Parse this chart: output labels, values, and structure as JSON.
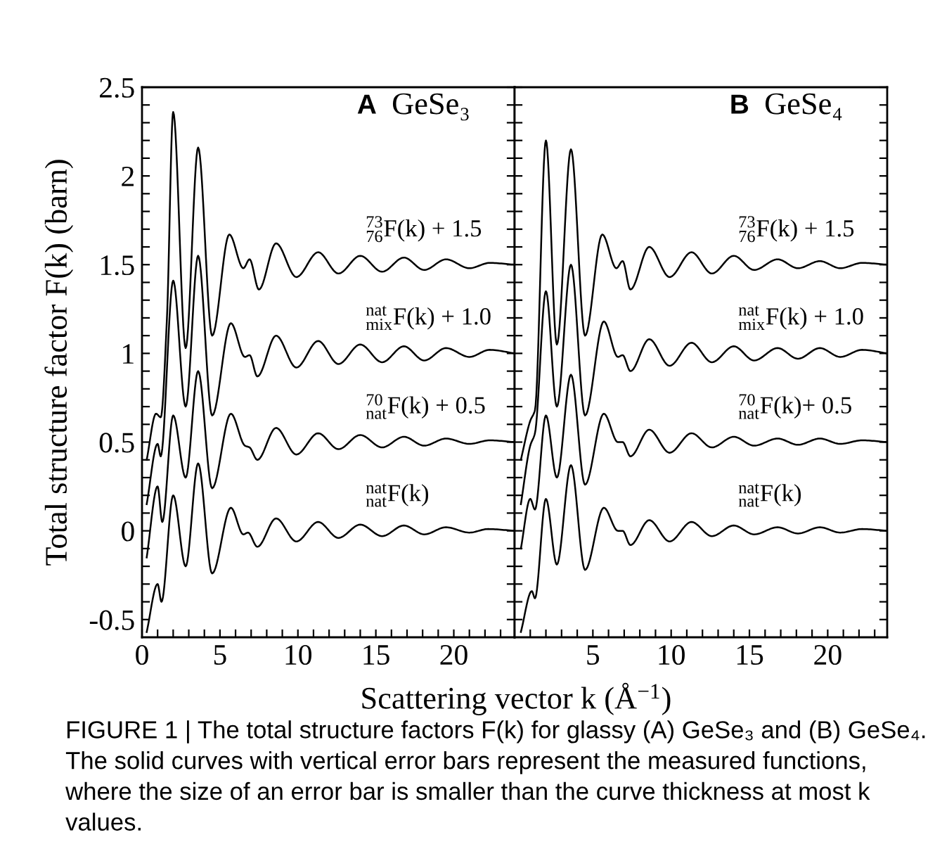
{
  "chart_data": [
    {
      "type": "line",
      "title": "GeSe₃",
      "annotations": [
        "A",
        "FIGURE 1 | The total structure factors F(k) for glassy (A) GeSe₃ and (B) GeSe₄. The solid curves with vertical error bars represent the measured functions, where the size of an error bar is smaller than the curve thickness at most k values."
      ],
      "xlabel": "Scattering vector k (Å$^{−1}$)",
      "ylabel": "Total structure factor F(k) (barn)",
      "xlim": [
        0,
        23.9
      ],
      "ylim": [
        -0.6,
        2.5
      ],
      "xticks": [
        0,
        {
          "value": 1,
          "label": null
        },
        {
          "value": 2,
          "label": null
        },
        {
          "value": 3,
          "label": null
        },
        {
          "value": 4,
          "label": null
        },
        5,
        {
          "value": 6,
          "label": null
        },
        {
          "value": 7,
          "label": null
        },
        {
          "value": 8,
          "label": null
        },
        {
          "value": 9,
          "label": null
        },
        10,
        {
          "value": 11,
          "label": null
        },
        {
          "value": 12,
          "label": null
        },
        {
          "value": 13,
          "label": null
        },
        {
          "value": 14,
          "label": null
        },
        15,
        {
          "value": 16,
          "label": null
        },
        {
          "value": 17,
          "label": null
        },
        {
          "value": 18,
          "label": null
        },
        {
          "value": 19,
          "label": null
        },
        20,
        {
          "value": 21,
          "label": null
        },
        {
          "value": 22,
          "label": null
        },
        {
          "value": 23,
          "label": null
        }
      ],
      "yticks": [
        {
          "value": -0.5,
          "label": "-0.5"
        },
        {
          "value": -0.4,
          "label": null
        },
        {
          "value": -0.3,
          "label": null
        },
        {
          "value": -0.2,
          "label": null
        },
        {
          "value": -0.1,
          "label": null
        },
        0,
        {
          "value": 0.1,
          "label": null
        },
        {
          "value": 0.2,
          "label": null
        },
        {
          "value": 0.3,
          "label": null
        },
        {
          "value": 0.4,
          "label": null
        },
        0.5,
        {
          "value": 0.6,
          "label": null
        },
        {
          "value": 0.7,
          "label": null
        },
        {
          "value": 0.8,
          "label": null
        },
        {
          "value": 0.9,
          "label": null
        },
        1,
        {
          "value": 1.1,
          "label": null
        },
        {
          "value": 1.2,
          "label": null
        },
        {
          "value": 1.3,
          "label": null
        },
        {
          "value": 1.4,
          "label": null
        },
        1.5,
        {
          "value": 1.6,
          "label": null
        },
        {
          "value": 1.7,
          "label": null
        },
        {
          "value": 1.8,
          "label": null
        },
        {
          "value": 1.9,
          "label": null
        },
        2,
        {
          "value": 2.1,
          "label": null
        },
        {
          "value": 2.2,
          "label": null
        },
        {
          "value": 2.3,
          "label": null
        },
        {
          "value": 2.4,
          "label": null
        },
        2.5
      ],
      "grid": false,
      "legend": "right",
      "marker": "none",
      "line_style": "solid",
      "series": [
        {
          "name": "$^{nat}$$_{nat}$F(k)",
          "color": "#000000",
          "x": [
            0.3,
            1.0,
            1.25,
            2.0,
            2.8,
            3.6,
            4.5,
            5.7,
            6.5,
            6.8,
            7.4,
            8.6,
            9.9,
            11.3,
            12.6,
            14.0,
            15.4,
            16.8,
            18.1,
            19.5,
            21.0,
            22.2,
            23.9
          ],
          "values": [
            -0.57,
            -0.3,
            -0.4,
            0.2,
            -0.2,
            0.38,
            -0.24,
            0.13,
            -0.02,
            -0.01,
            -0.09,
            0.07,
            -0.06,
            0.05,
            -0.04,
            0.035,
            -0.03,
            0.03,
            -0.02,
            0.02,
            -0.01,
            0.01,
            0.0
          ]
        },
        {
          "name": "$^{70}$$_{nat}$F(k) + 0.5",
          "color": "#000000",
          "x": [
            0.3,
            1.0,
            1.3,
            2.0,
            2.8,
            3.6,
            4.5,
            5.7,
            6.6,
            6.9,
            7.4,
            8.6,
            9.9,
            11.3,
            12.6,
            14.0,
            15.4,
            16.8,
            18.1,
            19.5,
            21.0,
            22.3,
            23.9
          ],
          "values": [
            -0.15,
            0.25,
            0.05,
            0.65,
            0.3,
            0.9,
            0.24,
            0.66,
            0.48,
            0.47,
            0.4,
            0.58,
            0.43,
            0.55,
            0.46,
            0.54,
            0.47,
            0.53,
            0.48,
            0.52,
            0.49,
            0.51,
            0.5
          ]
        },
        {
          "name": "$^{nat}$$_{mix}$F(k) + 1.0",
          "color": "#000000",
          "x": [
            0.3,
            1.0,
            1.2,
            2.0,
            2.8,
            3.6,
            4.5,
            5.7,
            6.6,
            6.9,
            7.4,
            8.6,
            9.9,
            11.3,
            12.6,
            14.0,
            15.4,
            16.8,
            18.1,
            19.5,
            21.0,
            22.3,
            23.9
          ],
          "values": [
            0.15,
            0.49,
            0.42,
            1.41,
            0.7,
            1.55,
            0.65,
            1.17,
            0.98,
            0.99,
            0.87,
            1.1,
            0.92,
            1.07,
            0.94,
            1.05,
            0.95,
            1.04,
            0.96,
            1.03,
            0.98,
            1.02,
            1.0
          ]
        },
        {
          "name": "$^{73}$$_{76}$F(k) + 1.5",
          "color": "#000000",
          "x": [
            0.3,
            0.9,
            1.2,
            1.6,
            2.0,
            2.8,
            3.6,
            4.5,
            5.6,
            6.5,
            6.9,
            7.5,
            8.6,
            9.9,
            11.3,
            12.6,
            14.0,
            15.4,
            16.8,
            18.1,
            19.5,
            21.0,
            22.3,
            23.9
          ],
          "values": [
            0.4,
            0.66,
            0.64,
            1.2,
            2.36,
            1.03,
            2.16,
            1.1,
            1.67,
            1.48,
            1.53,
            1.36,
            1.62,
            1.43,
            1.57,
            1.45,
            1.55,
            1.46,
            1.54,
            1.47,
            1.53,
            1.48,
            1.51,
            1.5
          ]
        }
      ]
    },
    {
      "type": "line",
      "title": "GeSe₄",
      "annotations": [
        "B"
      ],
      "tick_labels": "x",
      "xlim": [
        0,
        23.8
      ],
      "ylim": [
        -0.6,
        2.5
      ],
      "xticks": [
        {
          "value": 0,
          "label": null
        },
        {
          "value": 1,
          "label": null
        },
        {
          "value": 2,
          "label": null
        },
        {
          "value": 3,
          "label": null
        },
        {
          "value": 4,
          "label": null
        },
        5,
        {
          "value": 6,
          "label": null
        },
        {
          "value": 7,
          "label": null
        },
        {
          "value": 8,
          "label": null
        },
        {
          "value": 9,
          "label": null
        },
        10,
        {
          "value": 11,
          "label": null
        },
        {
          "value": 12,
          "label": null
        },
        {
          "value": 13,
          "label": null
        },
        {
          "value": 14,
          "label": null
        },
        15,
        {
          "value": 16,
          "label": null
        },
        {
          "value": 17,
          "label": null
        },
        {
          "value": 18,
          "label": null
        },
        {
          "value": 19,
          "label": null
        },
        20,
        {
          "value": 21,
          "label": null
        },
        {
          "value": 22,
          "label": null
        },
        {
          "value": 23,
          "label": null
        }
      ],
      "yticks": [
        {
          "value": -0.5,
          "label": null
        },
        {
          "value": -0.4,
          "label": null
        },
        {
          "value": -0.3,
          "label": null
        },
        {
          "value": -0.2,
          "label": null
        },
        {
          "value": -0.1,
          "label": null
        },
        {
          "value": 0,
          "label": null
        },
        {
          "value": 0.1,
          "label": null
        },
        {
          "value": 0.2,
          "label": null
        },
        {
          "value": 0.3,
          "label": null
        },
        {
          "value": 0.4,
          "label": null
        },
        {
          "value": 0.5,
          "label": null
        },
        {
          "value": 0.6,
          "label": null
        },
        {
          "value": 0.7,
          "label": null
        },
        {
          "value": 0.8,
          "label": null
        },
        {
          "value": 0.9,
          "label": null
        },
        {
          "value": 1,
          "label": null
        },
        {
          "value": 1.1,
          "label": null
        },
        {
          "value": 1.2,
          "label": null
        },
        {
          "value": 1.3,
          "label": null
        },
        {
          "value": 1.4,
          "label": null
        },
        {
          "value": 1.5,
          "label": null
        },
        {
          "value": 1.6,
          "label": null
        },
        {
          "value": 1.7,
          "label": null
        },
        {
          "value": 1.8,
          "label": null
        },
        {
          "value": 1.9,
          "label": null
        },
        {
          "value": 2,
          "label": null
        },
        {
          "value": 2.1,
          "label": null
        },
        {
          "value": 2.2,
          "label": null
        },
        {
          "value": 2.3,
          "label": null
        },
        {
          "value": 2.4,
          "label": null
        },
        {
          "value": 2.5,
          "label": null
        }
      ],
      "grid": false,
      "legend": "right",
      "marker": "none",
      "line_style": "solid",
      "series": [
        {
          "name": "$^{nat}$$_{nat}$F(k)",
          "color": "#000000",
          "x": [
            0.4,
            1.1,
            1.3,
            2.0,
            2.7,
            3.6,
            4.5,
            5.7,
            6.6,
            6.9,
            7.4,
            8.6,
            9.9,
            11.3,
            12.6,
            14.0,
            15.3,
            16.8,
            18.1,
            19.5,
            20.8,
            22.2,
            23.8
          ],
          "values": [
            -0.57,
            -0.34,
            -0.38,
            0.18,
            -0.19,
            0.37,
            -0.22,
            0.13,
            0.0,
            0.0,
            -0.08,
            0.06,
            -0.06,
            0.05,
            -0.03,
            0.03,
            -0.02,
            0.02,
            -0.015,
            0.02,
            -0.01,
            0.01,
            0.0
          ]
        },
        {
          "name": "$^{70}$$_{nat}$F(k)+ 0.5",
          "color": "#000000",
          "x": [
            0.4,
            1.0,
            1.3,
            2.0,
            2.7,
            3.6,
            4.5,
            5.7,
            6.6,
            6.9,
            7.4,
            8.6,
            9.9,
            11.3,
            12.6,
            14.0,
            15.3,
            16.8,
            18.1,
            19.5,
            20.8,
            22.2,
            23.8
          ],
          "values": [
            -0.1,
            0.18,
            0.12,
            0.65,
            0.3,
            0.88,
            0.26,
            0.66,
            0.5,
            0.5,
            0.42,
            0.57,
            0.44,
            0.55,
            0.47,
            0.53,
            0.48,
            0.52,
            0.485,
            0.52,
            0.49,
            0.51,
            0.5
          ]
        },
        {
          "name": "$^{nat}$$_{mix}$F(k) + 1.0",
          "color": "#000000",
          "x": [
            0.4,
            1.0,
            1.3,
            2.0,
            2.7,
            3.6,
            4.5,
            5.7,
            6.6,
            6.9,
            7.4,
            8.6,
            9.9,
            11.3,
            12.6,
            14.0,
            15.3,
            16.8,
            18.1,
            19.5,
            20.8,
            22.2,
            23.8
          ],
          "values": [
            0.15,
            0.48,
            0.55,
            1.35,
            0.7,
            1.5,
            0.65,
            1.18,
            0.98,
            0.99,
            0.9,
            1.08,
            0.93,
            1.06,
            0.95,
            1.04,
            0.96,
            1.03,
            0.97,
            1.03,
            0.98,
            1.02,
            1.0
          ]
        },
        {
          "name": "$^{73}$$_{76}$F(k) + 1.5",
          "color": "#000000",
          "x": [
            0.4,
            1.0,
            1.3,
            2.0,
            2.7,
            3.6,
            4.5,
            5.6,
            6.5,
            6.9,
            7.4,
            8.6,
            9.9,
            11.3,
            12.6,
            14.0,
            15.3,
            16.8,
            18.1,
            19.5,
            20.8,
            22.2,
            23.8
          ],
          "values": [
            0.4,
            0.62,
            0.68,
            2.2,
            1.05,
            2.15,
            1.1,
            1.67,
            1.48,
            1.52,
            1.36,
            1.6,
            1.43,
            1.57,
            1.45,
            1.55,
            1.47,
            1.53,
            1.48,
            1.52,
            1.48,
            1.51,
            1.5
          ]
        }
      ]
    }
  ]
}
